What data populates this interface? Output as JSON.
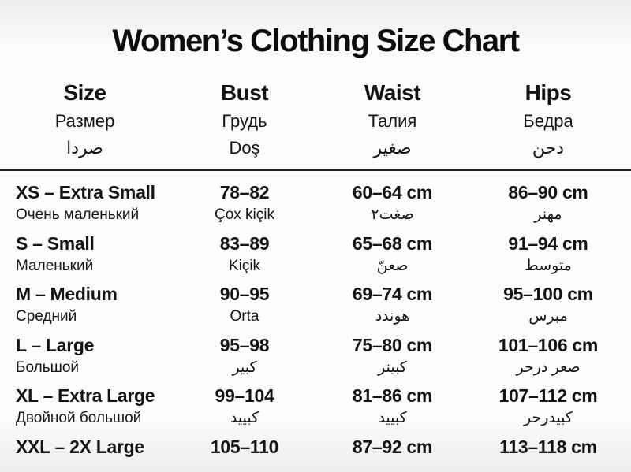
{
  "title": "Women’s Clothing Size Chart",
  "chart_data": {
    "type": "table",
    "title": "Women’s Clothing Size Chart",
    "columns": [
      {
        "en": "Size",
        "ru": "Размер",
        "alt": "صردا"
      },
      {
        "en": "Bust",
        "ru": "Грудь",
        "alt": "Doş"
      },
      {
        "en": "Waist",
        "ru": "Талия",
        "alt": "صغير"
      },
      {
        "en": "Hips",
        "ru": "Бедра",
        "alt": "دحن"
      }
    ],
    "rows": [
      {
        "size": "XS – Extra Small",
        "size_alt": "Очень маленький",
        "bust": "78–82",
        "bust_alt": "Çox kiçik",
        "waist": "60–64 cm",
        "waist_alt": "صغت٢",
        "hips": "86–90 cm",
        "hips_alt": "مهنر"
      },
      {
        "size": "S – Small",
        "size_alt": "Маленький",
        "bust": "83–89",
        "bust_alt": "Kiçik",
        "waist": "65–68 cm",
        "waist_alt": "صعنّ",
        "hips": "91–94 cm",
        "hips_alt": "متوسط"
      },
      {
        "size": "M – Medium",
        "size_alt": "Средний",
        "bust": "90–95",
        "bust_alt": "Orta",
        "waist": "69–74 cm",
        "waist_alt": "هوندد",
        "hips": "95–100 cm",
        "hips_alt": "مبرس"
      },
      {
        "size": "L – Large",
        "size_alt": "Большой",
        "bust": "95–98",
        "bust_alt": "كبير",
        "waist": "75–80 cm",
        "waist_alt": "كبينر",
        "hips": "101–106 cm",
        "hips_alt": "صعر درحر"
      },
      {
        "size": "XL – Extra Large",
        "size_alt": "Двойной большой",
        "bust": "99–104",
        "bust_alt": "كبييد",
        "waist": "81–86 cm",
        "waist_alt": "كبييد",
        "hips": "107–112 cm",
        "hips_alt": "كبيدرحر"
      },
      {
        "size": "XXL – 2X Large",
        "bust": "105–110",
        "waist": "87–92 cm",
        "hips": "113–118 cm"
      }
    ]
  }
}
